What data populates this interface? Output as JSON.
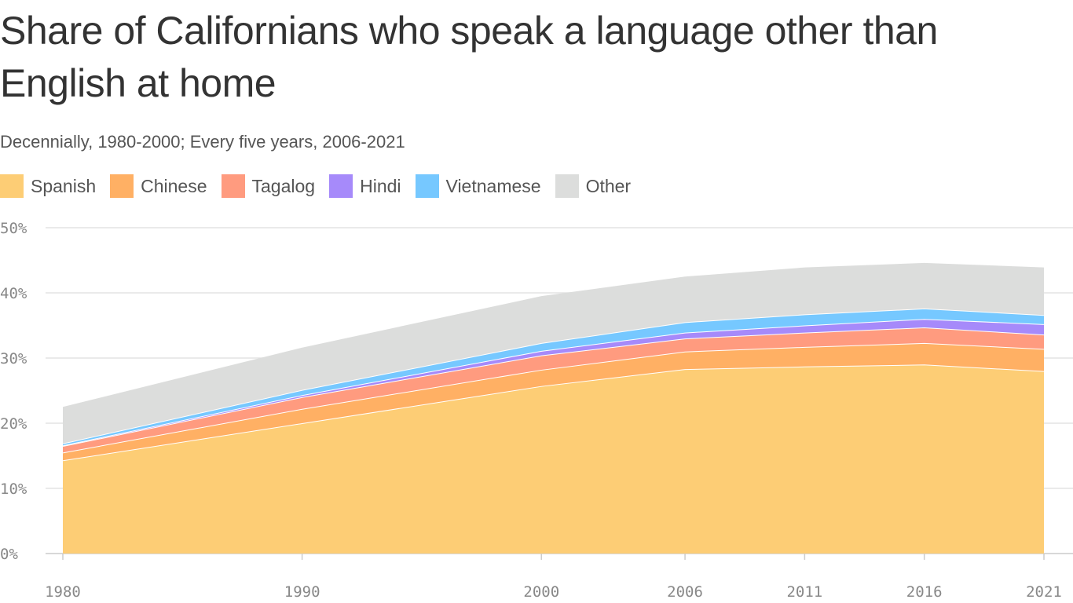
{
  "title": "Share of Californians who speak a language other than English at home",
  "subtitle": "Decennially, 1980-2000; Every five years, 2006-2021",
  "chart_data": {
    "type": "area",
    "stacked": true,
    "title": "Share of Californians who speak a language other than English at home",
    "subtitle": "Decennially, 1980-2000; Every five years, 2006-2021",
    "x": [
      1980,
      1990,
      2000,
      2006,
      2011,
      2016,
      2021
    ],
    "x_tick_labels": [
      "1980",
      "1990",
      "2000",
      "2006",
      "2011",
      "2016",
      "2021"
    ],
    "y_tick_labels": [
      "0%",
      "10%",
      "20%",
      "30%",
      "40%",
      "50%"
    ],
    "ylim": [
      0,
      50
    ],
    "grid": true,
    "legend_position": "top-left",
    "series": [
      {
        "name": "Spanish",
        "color": "#fdcd75",
        "values": [
          14.3,
          20.0,
          25.7,
          28.3,
          28.7,
          29.0,
          28.0
        ]
      },
      {
        "name": "Chinese",
        "color": "#ffb064",
        "values": [
          1.2,
          2.2,
          2.5,
          2.7,
          3.0,
          3.3,
          3.4
        ]
      },
      {
        "name": "Tagalog",
        "color": "#ff9b7f",
        "values": [
          1.0,
          1.8,
          2.2,
          2.0,
          2.2,
          2.4,
          2.2
        ]
      },
      {
        "name": "Hindi",
        "color": "#a68afa",
        "values": [
          0.1,
          0.3,
          0.7,
          0.9,
          1.1,
          1.3,
          1.6
        ]
      },
      {
        "name": "Vietnamese",
        "color": "#76c8ff",
        "values": [
          0.3,
          0.8,
          1.2,
          1.6,
          1.7,
          1.6,
          1.4
        ]
      },
      {
        "name": "Other",
        "color": "#dcdddc",
        "values": [
          5.6,
          6.5,
          7.2,
          7.0,
          7.2,
          7.0,
          7.3
        ]
      }
    ]
  }
}
